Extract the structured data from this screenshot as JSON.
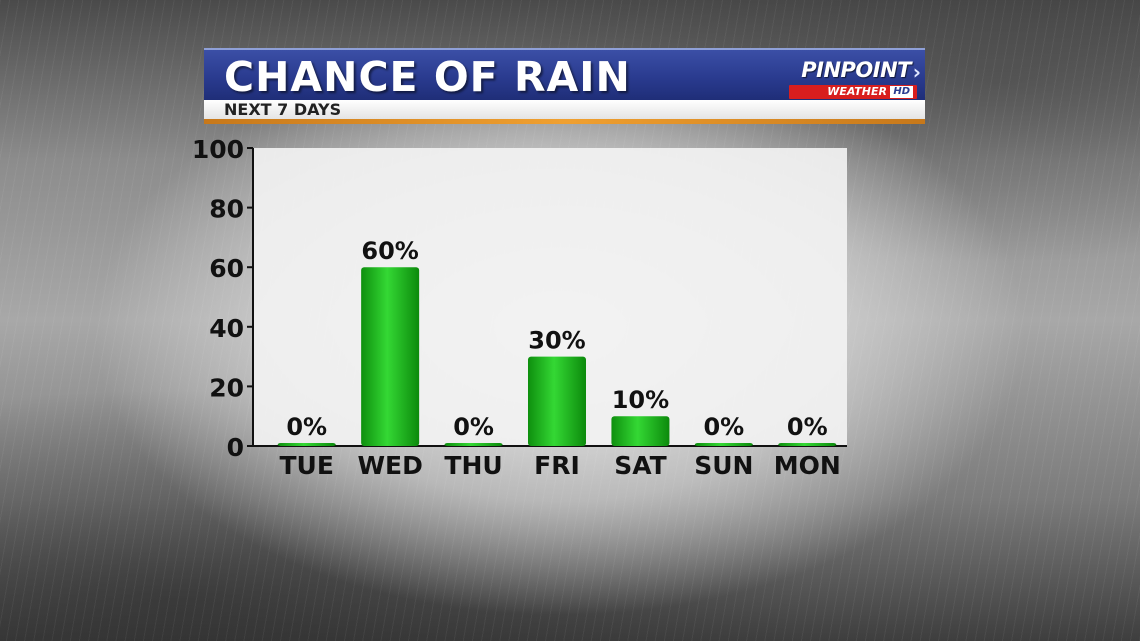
{
  "header": {
    "title": "CHANCE OF RAIN",
    "subtitle": "NEXT 7 DAYS"
  },
  "logo": {
    "main": "PINPOINT",
    "sub": "WEATHER",
    "badge": "HD",
    "icon": "chevron-right-icon"
  },
  "colors": {
    "banner_blue": "#2a3b8f",
    "accent_orange": "#f0a030",
    "bar_green": "#1fbf1f",
    "logo_red": "#d81e1e"
  },
  "chart_data": {
    "type": "bar",
    "title": "CHANCE OF RAIN",
    "subtitle": "NEXT 7 DAYS",
    "categories": [
      "TUE",
      "WED",
      "THU",
      "FRI",
      "SAT",
      "SUN",
      "MON"
    ],
    "values": [
      0,
      60,
      0,
      30,
      10,
      0,
      0
    ],
    "value_labels": [
      "0%",
      "60%",
      "0%",
      "30%",
      "10%",
      "0%",
      "0%"
    ],
    "yticks": [
      "0",
      "20",
      "40",
      "60",
      "80",
      "100"
    ],
    "ylim": [
      0,
      100
    ],
    "xlabel": "",
    "ylabel": "",
    "grid": false,
    "legend": "none"
  }
}
